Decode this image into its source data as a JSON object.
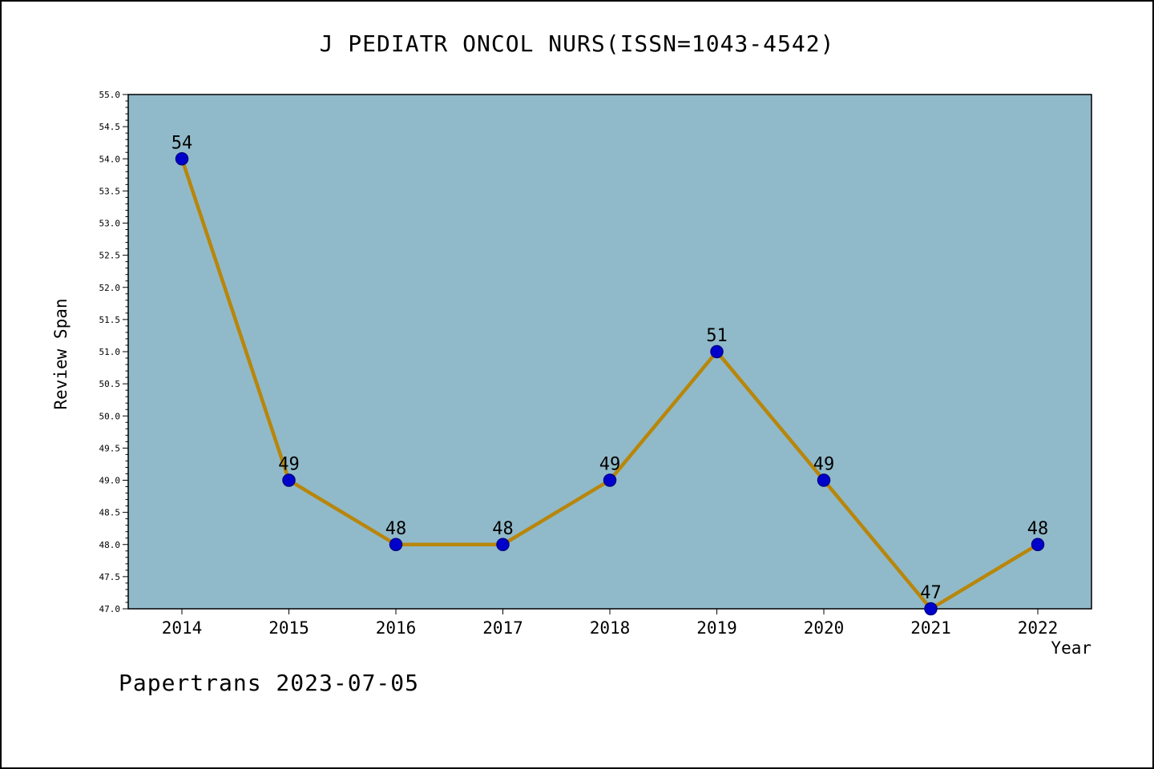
{
  "footer": {
    "text": "Papertrans 2023-07-05"
  },
  "chart_data": {
    "type": "line",
    "title": "J PEDIATR ONCOL NURS(ISSN=1043-4542)",
    "x": [
      2014,
      2015,
      2016,
      2017,
      2018,
      2019,
      2020,
      2021,
      2022
    ],
    "values": [
      54,
      49,
      48,
      48,
      49,
      51,
      49,
      47,
      48
    ],
    "xlabel": "Year",
    "ylabel": "Review Span",
    "ylim": [
      47.0,
      55.0
    ],
    "ytick_step": 0.5,
    "minor_tick_step": 0.1,
    "grid": false,
    "legend": "none",
    "colors": {
      "plot_bg": "#90BAC9",
      "line": "#B8860B",
      "marker": "#0000CD",
      "marker_edge": "#00008B",
      "axis": "#000000",
      "page_bg": "#FFFFFF"
    }
  }
}
